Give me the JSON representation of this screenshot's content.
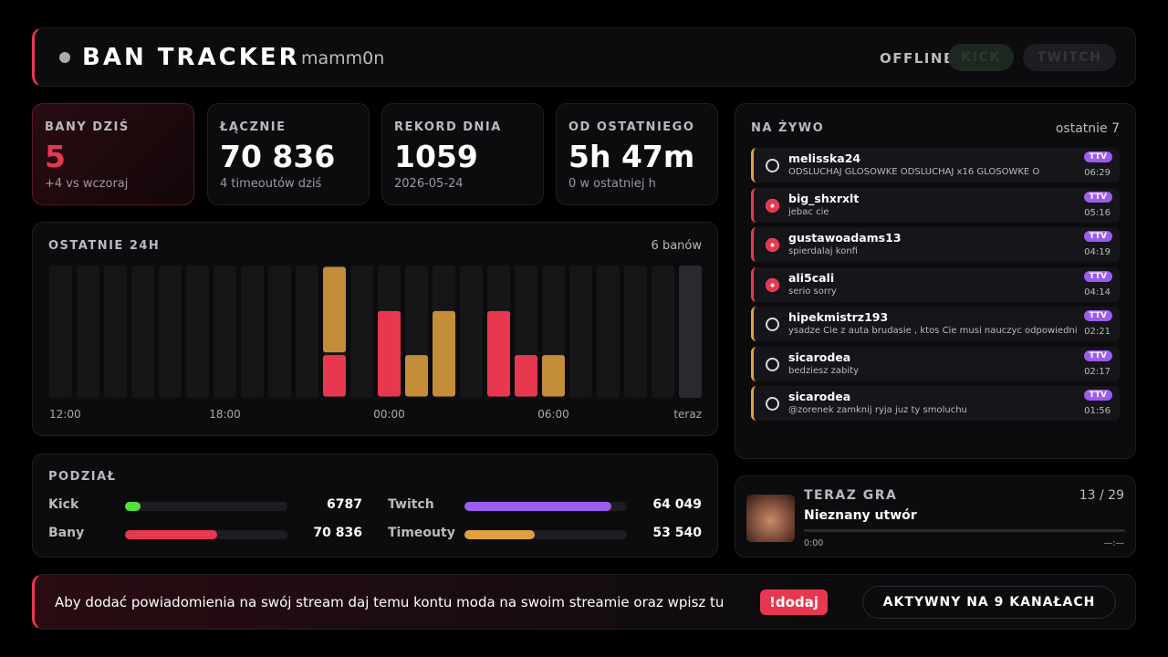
{
  "header": {
    "title": "BAN TRACKER",
    "user": "mamm0n",
    "status": "OFFLINE",
    "buttons": [
      "KICK",
      "TWITCH"
    ]
  },
  "stats": [
    {
      "label": "BANY DZIŚ",
      "value": "5",
      "sub": "+4 vs wczoraj"
    },
    {
      "label": "ŁĄCZNIE",
      "value": "70 836",
      "sub": "4 timeoutów dziś"
    },
    {
      "label": "REKORD DNIA",
      "value": "1059",
      "sub": "2026-05-24"
    },
    {
      "label": "OD OSTATNIEGO",
      "value": "5h 47m",
      "sub": "0 w ostatniej h"
    }
  ],
  "chart_data": {
    "type": "bar",
    "stacked": true,
    "title": "OSTATNIE 24H",
    "summary": "6 banów",
    "categories": [
      "12:00",
      null,
      null,
      null,
      null,
      null,
      "18:00",
      null,
      null,
      null,
      null,
      null,
      "00:00",
      null,
      null,
      null,
      null,
      null,
      "06:00",
      null,
      null,
      null,
      null,
      "teraz"
    ],
    "series": [
      {
        "color": "#e8384f",
        "values": [
          0,
          0,
          0,
          0,
          0,
          0,
          0,
          0,
          0,
          0,
          1,
          0,
          2,
          0,
          0,
          0,
          2,
          1,
          0,
          0,
          0,
          0,
          0,
          0
        ]
      },
      {
        "color": "#c48d3a",
        "values": [
          0,
          0,
          0,
          0,
          0,
          0,
          0,
          0,
          0,
          0,
          2,
          0,
          0,
          1,
          2,
          0,
          0,
          0,
          1,
          0,
          0,
          0,
          0,
          0
        ]
      }
    ],
    "ylim": [
      0,
      3
    ]
  },
  "split": {
    "title": "PODZIAŁ",
    "rows": [
      {
        "name": "Kick",
        "value": 6787,
        "label": "6787",
        "color": "#53e03c"
      },
      {
        "name": "Twitch",
        "value": 64049,
        "label": "64 049",
        "color": "#9b5cf0"
      },
      {
        "name": "Bany",
        "value": 70836,
        "label": "70 836",
        "color": "#e8384f"
      },
      {
        "name": "Timeouty",
        "value": 53540,
        "label": "53 540",
        "color": "#e0a040"
      }
    ]
  },
  "live": {
    "title": "NA ŻYWO",
    "subtitle": "ostatnie 7",
    "items": [
      {
        "kind": "timeout",
        "user": "melisska24",
        "message": "ODSLUCHAJ GLOSOWKE ODSLUCHAJ x16 GLOSOWKE O",
        "badge": "TTV",
        "time": "06:29"
      },
      {
        "kind": "ban",
        "user": "big_shxrxlt",
        "message": "jebac cie",
        "badge": "TTV",
        "time": "05:16"
      },
      {
        "kind": "ban",
        "user": "gustawoadams13",
        "message": "spierdalaj konfi",
        "badge": "TTV",
        "time": "04:19"
      },
      {
        "kind": "ban",
        "user": "ali5cali",
        "message": "serio sorry",
        "badge": "TTV",
        "time": "04:14"
      },
      {
        "kind": "timeout",
        "user": "hipekmistrz193",
        "message": "ysadze Cie z auta brudasie , ktos Cie musi nauczyc odpowiednie",
        "badge": "TTV",
        "time": "02:21"
      },
      {
        "kind": "timeout",
        "user": "sicarodea",
        "message": "bedziesz zabity",
        "badge": "TTV",
        "time": "02:17"
      },
      {
        "kind": "timeout",
        "user": "sicarodea",
        "message": "@zorenek zamknij ryja juz ty smoluchu",
        "badge": "TTV",
        "time": "01:56"
      }
    ]
  },
  "now_playing": {
    "title": "TERAZ GRA",
    "position": "13 / 29",
    "track": "Nieznany utwór",
    "elapsed": "0:00",
    "duration": "—:—"
  },
  "footer": {
    "text": "Aby dodać powiadomienia na swój stream daj temu kontu moda na swoim streamie oraz wpisz tu",
    "command": "!dodaj",
    "status": "AKTYWNY NA 9 KANAŁACH"
  }
}
